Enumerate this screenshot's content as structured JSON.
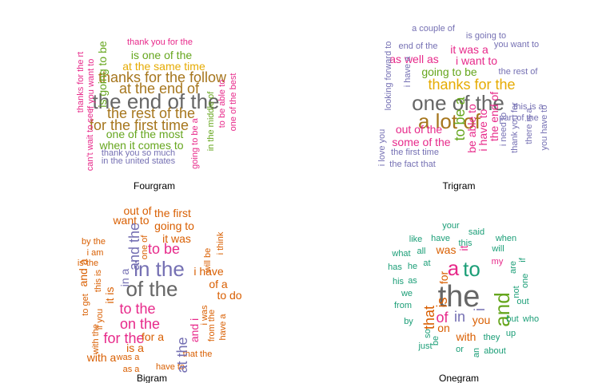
{
  "chart_data": [
    {
      "type": "wordcloud",
      "caption": "Fourgram",
      "words": [
        {
          "text": "thank you for the",
          "color": "#e7298a",
          "weight": 1
        },
        {
          "text": "is one of the",
          "color": "#66a61e",
          "weight": 2
        },
        {
          "text": "at the same time",
          "color": "#e6ab02",
          "weight": 2
        },
        {
          "text": "thanks for the follow",
          "color": "#a6761d",
          "weight": 3
        },
        {
          "text": "at the end of",
          "color": "#a6761d",
          "weight": 3
        },
        {
          "text": "the end of the",
          "color": "#666666",
          "weight": 4
        },
        {
          "text": "the rest of the",
          "color": "#a6761d",
          "weight": 3
        },
        {
          "text": "for the first time",
          "color": "#a6761d",
          "weight": 3
        },
        {
          "text": "one of the most",
          "color": "#66a61e",
          "weight": 2
        },
        {
          "text": "when it comes to",
          "color": "#66a61e",
          "weight": 2
        },
        {
          "text": "thank you so much",
          "color": "#7570b3",
          "weight": 1
        },
        {
          "text": "in the united states",
          "color": "#7570b3",
          "weight": 1
        },
        {
          "text": "thanks for the rt",
          "color": "#e7298a",
          "weight": 1
        },
        {
          "text": "can't wait to see",
          "color": "#e7298a",
          "weight": 1
        },
        {
          "text": "if you want to",
          "color": "#e7298a",
          "weight": 1
        },
        {
          "text": "is going to be",
          "color": "#66a61e",
          "weight": 2
        },
        {
          "text": "going to be a",
          "color": "#e7298a",
          "weight": 1
        },
        {
          "text": "in the middle of",
          "color": "#66a61e",
          "weight": 1
        },
        {
          "text": "to be able to",
          "color": "#e7298a",
          "weight": 1
        },
        {
          "text": "one of the best",
          "color": "#e7298a",
          "weight": 1
        }
      ]
    },
    {
      "type": "wordcloud",
      "caption": "Trigram",
      "words": [
        {
          "text": "a couple of",
          "color": "#7570b3",
          "weight": 1
        },
        {
          "text": "is going to",
          "color": "#7570b3",
          "weight": 1
        },
        {
          "text": "end of the",
          "color": "#7570b3",
          "weight": 1
        },
        {
          "text": "it was a",
          "color": "#e7298a",
          "weight": 2
        },
        {
          "text": "you want to",
          "color": "#7570b3",
          "weight": 1
        },
        {
          "text": "as well as",
          "color": "#e7298a",
          "weight": 2
        },
        {
          "text": "i want to",
          "color": "#e7298a",
          "weight": 2
        },
        {
          "text": "going to be",
          "color": "#66a61e",
          "weight": 2
        },
        {
          "text": "the rest of",
          "color": "#7570b3",
          "weight": 1
        },
        {
          "text": "thanks for the",
          "color": "#e6ab02",
          "weight": 3
        },
        {
          "text": "one of the",
          "color": "#666666",
          "weight": 4
        },
        {
          "text": "a lot of",
          "color": "#a6761d",
          "weight": 4
        },
        {
          "text": "this is a",
          "color": "#7570b3",
          "weight": 1
        },
        {
          "text": "part of the",
          "color": "#7570b3",
          "weight": 1
        },
        {
          "text": "out of the",
          "color": "#e7298a",
          "weight": 2
        },
        {
          "text": "some of the",
          "color": "#e7298a",
          "weight": 2
        },
        {
          "text": "the first time",
          "color": "#7570b3",
          "weight": 1
        },
        {
          "text": "the fact that",
          "color": "#7570b3",
          "weight": 1
        },
        {
          "text": "looking forward to",
          "color": "#7570b3",
          "weight": 1
        },
        {
          "text": "i have a",
          "color": "#7570b3",
          "weight": 1
        },
        {
          "text": "i love you",
          "color": "#7570b3",
          "weight": 1
        },
        {
          "text": "to be a",
          "color": "#66a61e",
          "weight": 3
        },
        {
          "text": "be able to",
          "color": "#e7298a",
          "weight": 2
        },
        {
          "text": "i have to",
          "color": "#e7298a",
          "weight": 2
        },
        {
          "text": "the end of",
          "color": "#e7298a",
          "weight": 2
        },
        {
          "text": "i need to",
          "color": "#7570b3",
          "weight": 1
        },
        {
          "text": "thank you for",
          "color": "#7570b3",
          "weight": 1
        },
        {
          "text": "there is a",
          "color": "#7570b3",
          "weight": 1
        },
        {
          "text": "you have to",
          "color": "#7570b3",
          "weight": 1
        }
      ]
    },
    {
      "type": "wordcloud",
      "caption": "Bigram",
      "words": [
        {
          "text": "out of",
          "color": "#d95f02",
          "weight": 2
        },
        {
          "text": "the first",
          "color": "#d95f02",
          "weight": 2
        },
        {
          "text": "want to",
          "color": "#d95f02",
          "weight": 2
        },
        {
          "text": "going to",
          "color": "#d95f02",
          "weight": 2
        },
        {
          "text": "it was",
          "color": "#d95f02",
          "weight": 2
        },
        {
          "text": "by the",
          "color": "#d95f02",
          "weight": 1
        },
        {
          "text": "i am",
          "color": "#d95f02",
          "weight": 1
        },
        {
          "text": "is the",
          "color": "#d95f02",
          "weight": 1
        },
        {
          "text": "to be",
          "color": "#e7298a",
          "weight": 3
        },
        {
          "text": "in the",
          "color": "#7570b3",
          "weight": 4
        },
        {
          "text": "of the",
          "color": "#666666",
          "weight": 4
        },
        {
          "text": "i have",
          "color": "#d95f02",
          "weight": 2
        },
        {
          "text": "of a",
          "color": "#d95f02",
          "weight": 2
        },
        {
          "text": "to do",
          "color": "#d95f02",
          "weight": 2
        },
        {
          "text": "to the",
          "color": "#e7298a",
          "weight": 3
        },
        {
          "text": "on the",
          "color": "#e7298a",
          "weight": 3
        },
        {
          "text": "for the",
          "color": "#e7298a",
          "weight": 3
        },
        {
          "text": "for a",
          "color": "#d95f02",
          "weight": 2
        },
        {
          "text": "is a",
          "color": "#d95f02",
          "weight": 2
        },
        {
          "text": "with a",
          "color": "#d95f02",
          "weight": 2
        },
        {
          "text": "was a",
          "color": "#d95f02",
          "weight": 1
        },
        {
          "text": "as a",
          "color": "#d95f02",
          "weight": 1
        },
        {
          "text": "have to",
          "color": "#d95f02",
          "weight": 1
        },
        {
          "text": "that the",
          "color": "#d95f02",
          "weight": 1
        },
        {
          "text": "and a",
          "color": "#d95f02",
          "weight": 2
        },
        {
          "text": "to get",
          "color": "#d95f02",
          "weight": 1
        },
        {
          "text": "this is",
          "color": "#d95f02",
          "weight": 1
        },
        {
          "text": "with the",
          "color": "#d95f02",
          "weight": 1
        },
        {
          "text": "if you",
          "color": "#d95f02",
          "weight": 1
        },
        {
          "text": "it is",
          "color": "#d95f02",
          "weight": 2
        },
        {
          "text": "in a",
          "color": "#7570b3",
          "weight": 2
        },
        {
          "text": "and the",
          "color": "#7570b3",
          "weight": 3
        },
        {
          "text": "one of",
          "color": "#d95f02",
          "weight": 1
        },
        {
          "text": "i was",
          "color": "#d95f02",
          "weight": 1
        },
        {
          "text": "at the",
          "color": "#7570b3",
          "weight": 3
        },
        {
          "text": "and i",
          "color": "#e7298a",
          "weight": 2
        },
        {
          "text": "from the",
          "color": "#d95f02",
          "weight": 1
        },
        {
          "text": "have a",
          "color": "#d95f02",
          "weight": 1
        },
        {
          "text": "will be",
          "color": "#d95f02",
          "weight": 1
        },
        {
          "text": "i think",
          "color": "#d95f02",
          "weight": 1
        }
      ]
    },
    {
      "type": "wordcloud",
      "caption": "Onegram",
      "words": [
        {
          "text": "your",
          "color": "#1b9e77",
          "weight": 1
        },
        {
          "text": "said",
          "color": "#1b9e77",
          "weight": 1
        },
        {
          "text": "like",
          "color": "#1b9e77",
          "weight": 1
        },
        {
          "text": "have",
          "color": "#1b9e77",
          "weight": 1
        },
        {
          "text": "this",
          "color": "#1b9e77",
          "weight": 1
        },
        {
          "text": "when",
          "color": "#1b9e77",
          "weight": 1
        },
        {
          "text": "what",
          "color": "#1b9e77",
          "weight": 1
        },
        {
          "text": "all",
          "color": "#1b9e77",
          "weight": 1
        },
        {
          "text": "was",
          "color": "#d95f02",
          "weight": 2
        },
        {
          "text": "it",
          "color": "#e7298a",
          "weight": 2
        },
        {
          "text": "will",
          "color": "#1b9e77",
          "weight": 1
        },
        {
          "text": "has",
          "color": "#1b9e77",
          "weight": 1
        },
        {
          "text": "he",
          "color": "#1b9e77",
          "weight": 1
        },
        {
          "text": "at",
          "color": "#1b9e77",
          "weight": 1
        },
        {
          "text": "a",
          "color": "#e7298a",
          "weight": 4
        },
        {
          "text": "to",
          "color": "#1b9e77",
          "weight": 4
        },
        {
          "text": "my",
          "color": "#e7298a",
          "weight": 1
        },
        {
          "text": "his",
          "color": "#1b9e77",
          "weight": 1
        },
        {
          "text": "as",
          "color": "#1b9e77",
          "weight": 1
        },
        {
          "text": "the",
          "color": "#666666",
          "weight": 5
        },
        {
          "text": "for",
          "color": "#d95f02",
          "weight": 2
        },
        {
          "text": "and",
          "color": "#66a61e",
          "weight": 4
        },
        {
          "text": "not",
          "color": "#1b9e77",
          "weight": 1
        },
        {
          "text": "are",
          "color": "#1b9e77",
          "weight": 1
        },
        {
          "text": "if",
          "color": "#1b9e77",
          "weight": 1
        },
        {
          "text": "one",
          "color": "#1b9e77",
          "weight": 1
        },
        {
          "text": "we",
          "color": "#1b9e77",
          "weight": 1
        },
        {
          "text": "from",
          "color": "#1b9e77",
          "weight": 1
        },
        {
          "text": "that",
          "color": "#d95f02",
          "weight": 3
        },
        {
          "text": "is",
          "color": "#d95f02",
          "weight": 3
        },
        {
          "text": "of",
          "color": "#e7298a",
          "weight": 3
        },
        {
          "text": "in",
          "color": "#7570b3",
          "weight": 3
        },
        {
          "text": "i",
          "color": "#7570b3",
          "weight": 3
        },
        {
          "text": "out",
          "color": "#1b9e77",
          "weight": 1
        },
        {
          "text": "by",
          "color": "#1b9e77",
          "weight": 1
        },
        {
          "text": "you",
          "color": "#d95f02",
          "weight": 2
        },
        {
          "text": "but",
          "color": "#1b9e77",
          "weight": 1
        },
        {
          "text": "who",
          "color": "#1b9e77",
          "weight": 1
        },
        {
          "text": "so",
          "color": "#1b9e77",
          "weight": 1
        },
        {
          "text": "on",
          "color": "#d95f02",
          "weight": 2
        },
        {
          "text": "be",
          "color": "#1b9e77",
          "weight": 1
        },
        {
          "text": "with",
          "color": "#d95f02",
          "weight": 2
        },
        {
          "text": "they",
          "color": "#1b9e77",
          "weight": 1
        },
        {
          "text": "up",
          "color": "#1b9e77",
          "weight": 1
        },
        {
          "text": "just",
          "color": "#1b9e77",
          "weight": 1
        },
        {
          "text": "or",
          "color": "#1b9e77",
          "weight": 1
        },
        {
          "text": "an",
          "color": "#1b9e77",
          "weight": 1
        },
        {
          "text": "about",
          "color": "#1b9e77",
          "weight": 1
        }
      ]
    }
  ]
}
